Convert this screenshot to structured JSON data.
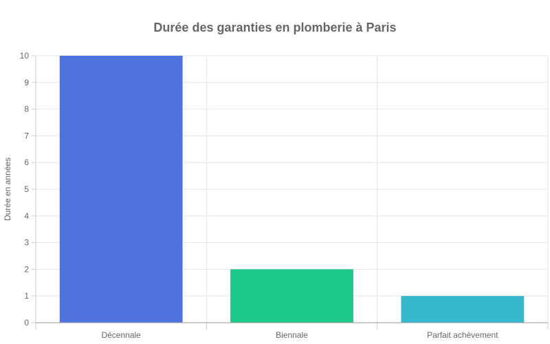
{
  "chart_data": {
    "type": "bar",
    "title": "Durée des garanties en plomberie à Paris",
    "xlabel": "",
    "ylabel": "Durée en années",
    "categories": [
      "Décennale",
      "Biennale",
      "Parfait achèvement"
    ],
    "values": [
      10,
      2,
      1
    ],
    "ylim": [
      0,
      10
    ],
    "yticks": [
      0,
      1,
      2,
      3,
      4,
      5,
      6,
      7,
      8,
      9,
      10
    ],
    "colors": [
      "#4e73df",
      "#1cc88a",
      "#36b9cc"
    ],
    "grid": true,
    "legend": "none"
  }
}
